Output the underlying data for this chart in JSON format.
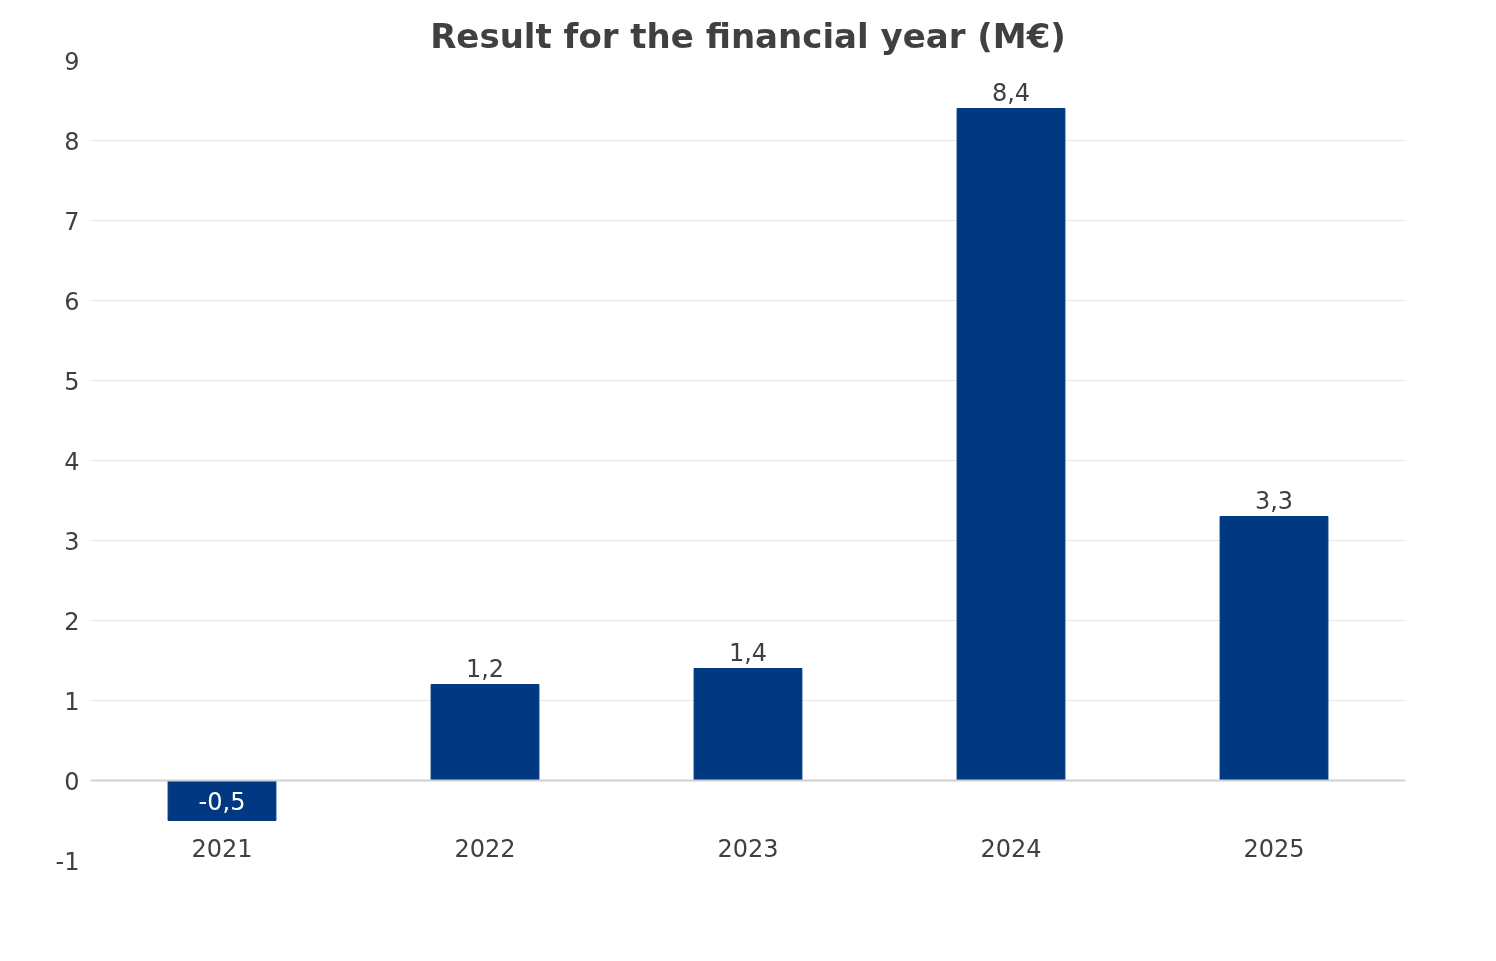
{
  "chart_data": {
    "type": "bar",
    "title": "Result for the financial year (M€)",
    "categories": [
      "2021",
      "2022",
      "2023",
      "2024",
      "2025"
    ],
    "values": [
      -0.5,
      1.2,
      1.4,
      8.4,
      3.3
    ],
    "value_labels": [
      "-0,5",
      "1,2",
      "1,4",
      "8,4",
      "3,3"
    ],
    "color": "#003882",
    "ylim": [
      -1,
      9
    ],
    "yticks": [
      -1,
      0,
      1,
      2,
      3,
      4,
      5,
      6,
      7,
      8,
      9
    ],
    "grid": "y"
  }
}
